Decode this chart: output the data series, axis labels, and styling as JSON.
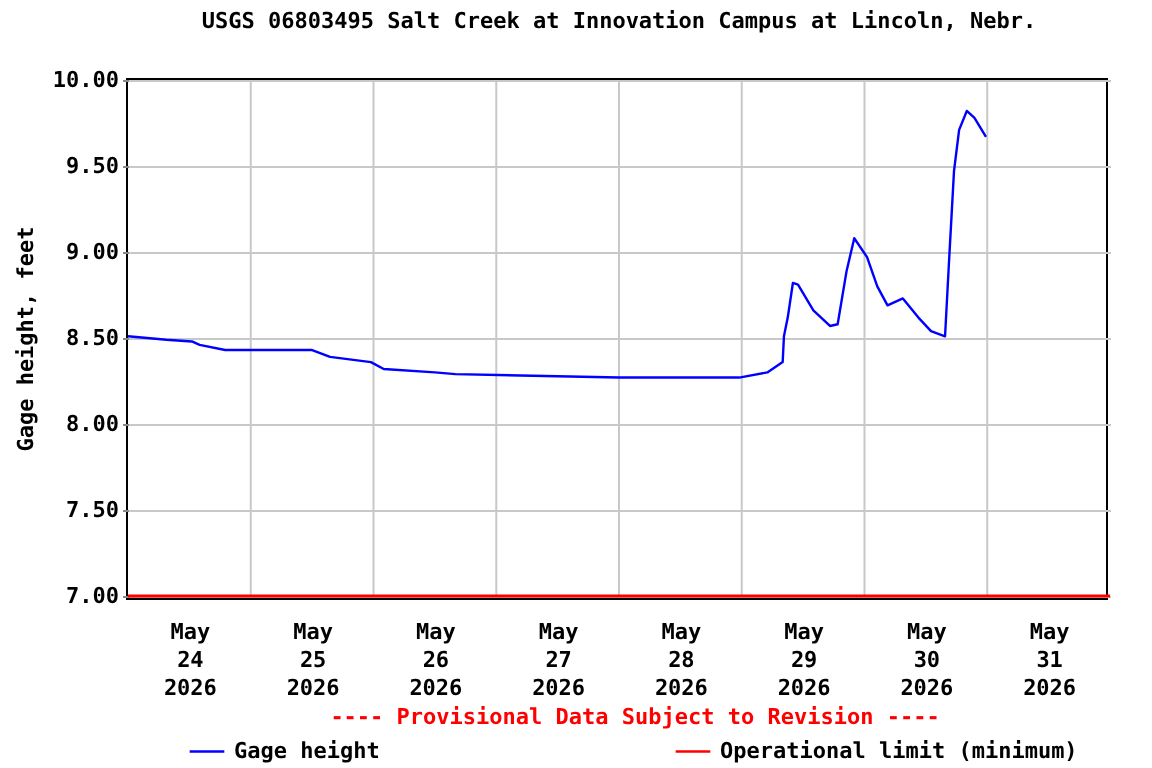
{
  "chart_data": {
    "type": "line",
    "title": "USGS 06803495 Salt Creek at Innovation Campus at Lincoln, Nebr.",
    "ylabel": "Gage height, feet",
    "annotations": [
      "---- Provisional Data Subject to Revision ----"
    ],
    "x": [
      "2026-05-24T00:00",
      "2026-05-24T07:30",
      "2026-05-24T12:30",
      "2026-05-24T14:00",
      "2026-05-24T19:00",
      "2026-05-25T12:00",
      "2026-05-25T15:30",
      "2026-05-25T23:30",
      "2026-05-26T02:00",
      "2026-05-26T12:00",
      "2026-05-26T16:00",
      "2026-05-28T00:00",
      "2026-05-28T23:30",
      "2026-05-29T05:00",
      "2026-05-29T08:00",
      "2026-05-29T08:15",
      "2026-05-29T09:00",
      "2026-05-29T10:00",
      "2026-05-29T11:00",
      "2026-05-29T14:00",
      "2026-05-29T17:15",
      "2026-05-29T18:45",
      "2026-05-29T20:30",
      "2026-05-29T22:00",
      "2026-05-30T00:30",
      "2026-05-30T02:30",
      "2026-05-30T04:30",
      "2026-05-30T07:30",
      "2026-05-30T10:30",
      "2026-05-30T13:00",
      "2026-05-30T15:45",
      "2026-05-30T16:30",
      "2026-05-30T17:30",
      "2026-05-30T18:30",
      "2026-05-30T20:00",
      "2026-05-30T21:30",
      "2026-05-30T23:45"
    ],
    "series": [
      {
        "name": "Gage height",
        "color": "#0000ff",
        "values": [
          8.51,
          8.49,
          8.48,
          8.46,
          8.43,
          8.43,
          8.39,
          8.36,
          8.32,
          8.3,
          8.29,
          8.27,
          8.27,
          8.3,
          8.36,
          8.51,
          8.62,
          8.82,
          8.81,
          8.66,
          8.57,
          8.58,
          8.89,
          9.08,
          8.97,
          8.8,
          8.69,
          8.73,
          8.62,
          8.54,
          8.51,
          8.93,
          9.47,
          9.71,
          9.82,
          9.78,
          9.67
        ]
      }
    ],
    "xlim": [
      "2026-05-24T00:00",
      "2026-06-01T00:00"
    ],
    "xticks": [
      {
        "value": "2026-05-24T12:00",
        "label": "May 24 2026"
      },
      {
        "value": "2026-05-25T00:00",
        "label": null
      },
      {
        "value": "2026-05-25T12:00",
        "label": "May 25 2026"
      },
      {
        "value": "2026-05-26T00:00",
        "label": null
      },
      {
        "value": "2026-05-26T12:00",
        "label": "May 26 2026"
      },
      {
        "value": "2026-05-27T00:00",
        "label": null
      },
      {
        "value": "2026-05-27T12:00",
        "label": "May 27 2026"
      },
      {
        "value": "2026-05-28T00:00",
        "label": null
      },
      {
        "value": "2026-05-28T12:00",
        "label": "May 28 2026"
      },
      {
        "value": "2026-05-29T00:00",
        "label": null
      },
      {
        "value": "2026-05-29T12:00",
        "label": "May 29 2026"
      },
      {
        "value": "2026-05-30T00:00",
        "label": null
      },
      {
        "value": "2026-05-30T12:00",
        "label": "May 30 2026"
      },
      {
        "value": "2026-05-31T00:00",
        "label": null
      },
      {
        "value": "2026-05-31T12:00",
        "label": "May 31 2026"
      }
    ],
    "ylim": [
      7,
      10
    ],
    "yticks": [
      {
        "value": 7,
        "label": "7.00"
      },
      {
        "value": 7.5,
        "label": "7.50"
      },
      {
        "value": 8,
        "label": "8.00"
      },
      {
        "value": 8.5,
        "label": "8.50"
      },
      {
        "value": 9,
        "label": "9.00"
      },
      {
        "value": 9.5,
        "label": "9.50"
      },
      {
        "value": 10,
        "label": "10.00"
      }
    ],
    "ref_lines": [
      {
        "axis": "y",
        "value": 7,
        "label": "Operational limit (minimum)",
        "color": "#ff0000"
      }
    ],
    "grid": true,
    "legend": "bottom",
    "marker": "none",
    "line_style": "solid"
  }
}
